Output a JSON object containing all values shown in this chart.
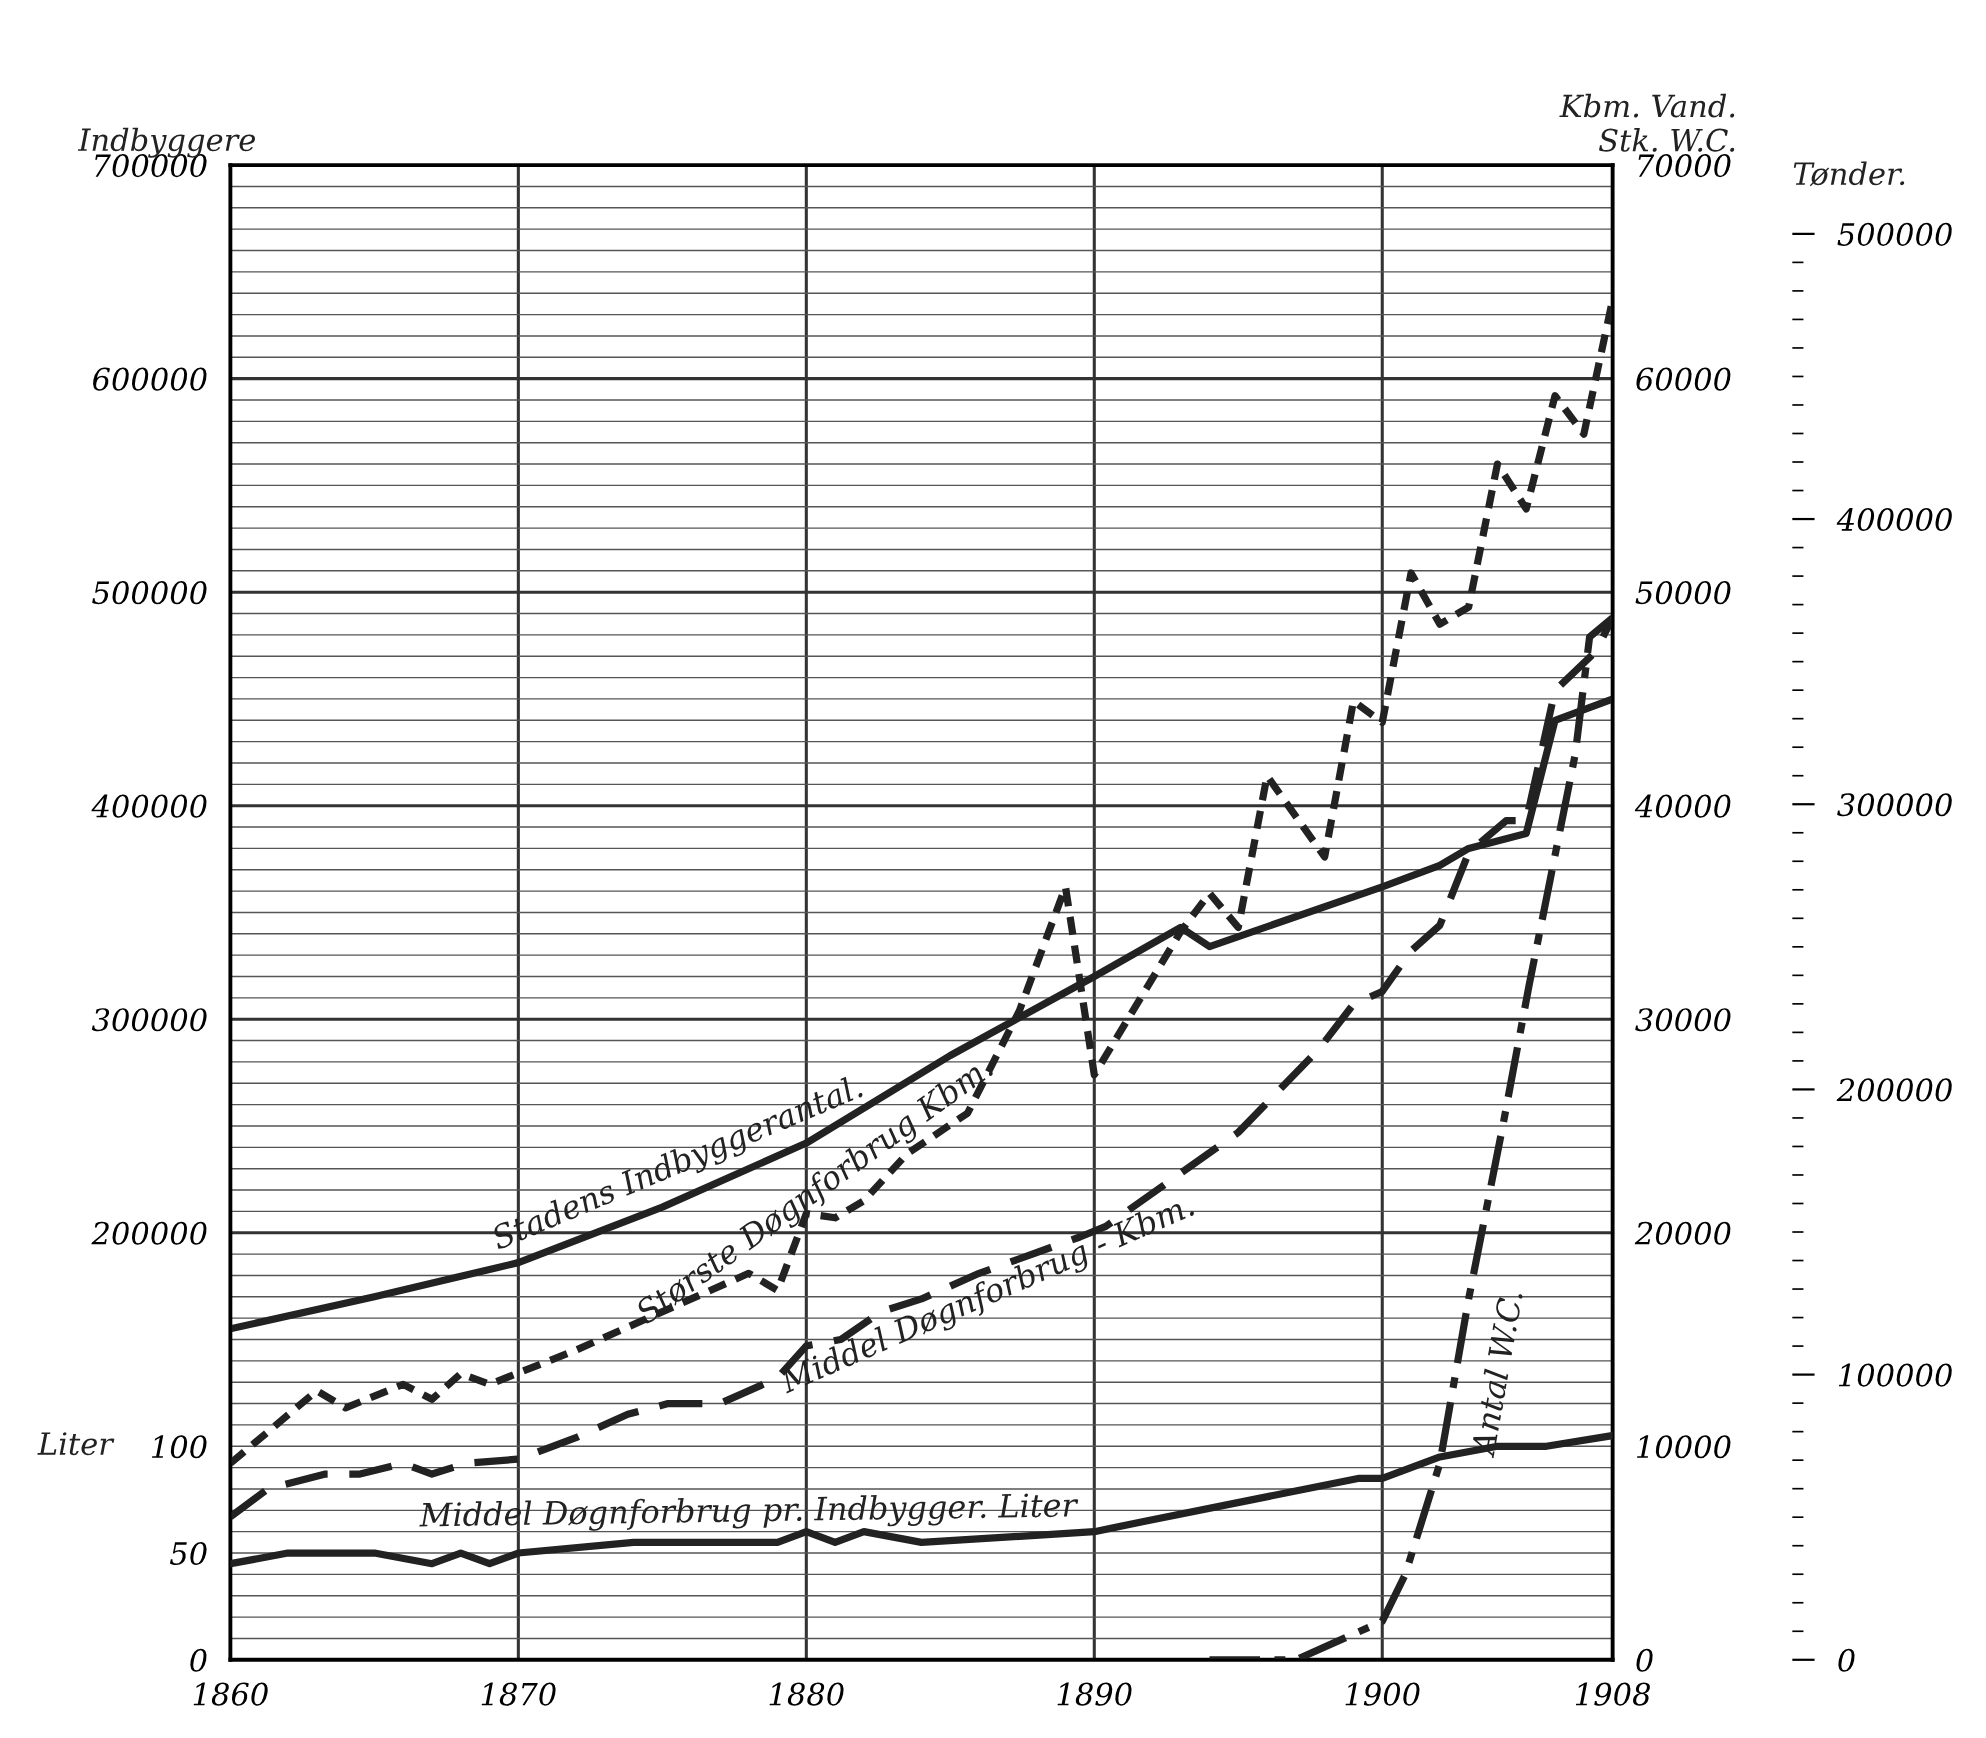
{
  "chart_data": {
    "type": "line",
    "xlim": [
      1860,
      1908
    ],
    "xticks": [
      1860,
      1870,
      1880,
      1890,
      1900,
      1908
    ],
    "ylim": [
      0,
      700000
    ],
    "yticks": [
      200000,
      300000,
      400000,
      500000,
      600000,
      700000
    ],
    "ylabel": "Indbyggere",
    "y2lim": [
      0,
      70000
    ],
    "y2ticks": [
      0,
      10000,
      20000,
      30000,
      40000,
      50000,
      60000,
      70000
    ],
    "y2label": "Kbm. Vand.\nStk. W.C.",
    "y3lim": [
      0,
      700
    ],
    "y3ticks": [
      0,
      50,
      100
    ],
    "y3label": "Liter",
    "annotations": [
      "Tønder.",
      "0",
      "100000",
      "200000",
      "300000",
      "400000",
      "500000"
    ],
    "grid": true,
    "series": [
      {
        "name": "Stadens Indbyggerantal.",
        "color": "#222222",
        "line_style": "solid",
        "x": [
          1860,
          1865,
          1870,
          1875,
          1880,
          1885,
          1890,
          1893,
          1894,
          1900,
          1902,
          1903,
          1905,
          1906,
          1908
        ],
        "values": [
          155000,
          170000,
          186000,
          212000,
          242000,
          283000,
          320000,
          343000,
          334000,
          362000,
          372000,
          380000,
          387000,
          440000,
          450000
        ]
      },
      {
        "name": "Største Døgnforbrug Kbm.",
        "color": "#222222",
        "line_style": "dotted",
        "axis": "y2",
        "x": [
          1860,
          1863,
          1864,
          1866,
          1867,
          1868,
          1869,
          1872,
          1878,
          1879,
          1880,
          1881,
          1882,
          1883.5,
          1885.6,
          1887.4,
          1889,
          1890,
          1893,
          1894,
          1895,
          1896,
          1898,
          1899,
          1900,
          1901,
          1902,
          1903,
          1904,
          1905,
          1906,
          1907,
          1908
        ],
        "values": [
          9200,
          12600,
          11800,
          12900,
          12200,
          13400,
          12900,
          14500,
          18100,
          17300,
          20900,
          20700,
          21500,
          23700,
          25600,
          30400,
          36200,
          27400,
          34100,
          35900,
          34300,
          41400,
          37600,
          44900,
          43900,
          50900,
          48500,
          49300,
          56000,
          53900,
          59200,
          57400,
          63700
        ]
      },
      {
        "name": "Middel Døgnforbrug - Kbm.",
        "color": "#222222",
        "line_style": "dashed",
        "axis": "y2",
        "x": [
          1860,
          1861.3,
          1863.3,
          1864.5,
          1866,
          1867,
          1868.2,
          1870,
          1872,
          1873.8,
          1875.2,
          1877,
          1879,
          1880,
          1881.2,
          1882.6,
          1884,
          1886,
          1889.5,
          1890.4,
          1895,
          1897.8,
          1899,
          1900,
          1901,
          1902,
          1903,
          1904.3,
          1905,
          1906,
          1907.4,
          1908
        ],
        "values": [
          6700,
          8000,
          8700,
          8700,
          9200,
          8700,
          9200,
          9400,
          10400,
          11500,
          12000,
          12000,
          13200,
          14700,
          15000,
          16300,
          16900,
          18100,
          19800,
          20300,
          24700,
          28600,
          30700,
          31300,
          33200,
          34400,
          37800,
          39300,
          39300,
          45400,
          47200,
          48800
        ]
      },
      {
        "name": "Middel Døgnforbrug pr. Indbygger. Liter",
        "color": "#222222",
        "line_style": "solid",
        "axis": "y3",
        "x": [
          1860,
          1862,
          1865,
          1867,
          1868,
          1869,
          1870,
          1874,
          1879,
          1880,
          1881,
          1882,
          1884,
          1890,
          1891.8,
          1895.5,
          1899.2,
          1900,
          1902,
          1904,
          1905.7,
          1908
        ],
        "values": [
          45,
          50,
          50,
          45,
          50,
          45,
          50,
          55,
          55,
          60,
          55,
          60,
          55,
          60,
          65,
          75,
          85,
          85,
          95,
          100,
          100,
          105
        ]
      },
      {
        "name": "Antal W.C.",
        "color": "#222222",
        "line_style": "dashdot",
        "axis": "y2",
        "x": [
          1894,
          1897,
          1900,
          1900.8,
          1902,
          1903,
          1904.2,
          1905.1,
          1906.7,
          1907.2,
          1908
        ],
        "values": [
          0,
          0,
          1800,
          4000,
          9200,
          16900,
          25100,
          31600,
          42400,
          47900,
          48800
        ]
      }
    ]
  }
}
